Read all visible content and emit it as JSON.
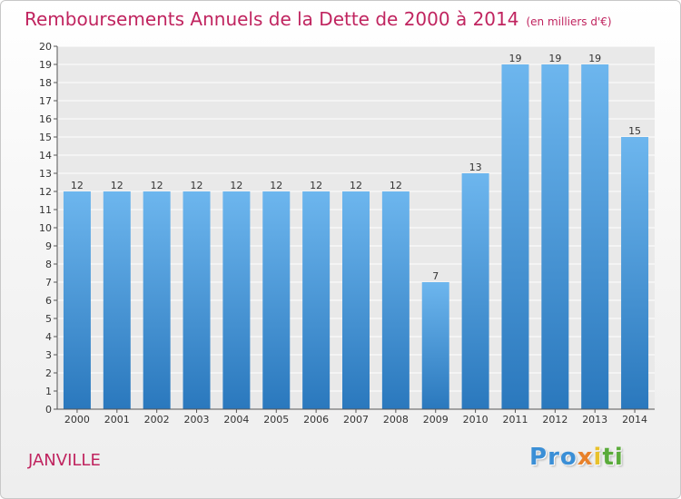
{
  "chart_data": {
    "type": "bar",
    "title": "Remboursements Annuels de la Dette de 2000 à 2014",
    "subtitle": "(en milliers d'€)",
    "categories": [
      "2000",
      "2001",
      "2002",
      "2003",
      "2004",
      "2005",
      "2006",
      "2007",
      "2008",
      "2009",
      "2010",
      "2011",
      "2012",
      "2013",
      "2014"
    ],
    "values": [
      12,
      12,
      12,
      12,
      12,
      12,
      12,
      12,
      12,
      7,
      13,
      19,
      19,
      19,
      15
    ],
    "ylim": [
      0,
      20
    ],
    "yticks": [
      0,
      1,
      2,
      3,
      4,
      5,
      6,
      7,
      8,
      9,
      10,
      11,
      12,
      13,
      14,
      15,
      16,
      17,
      18,
      19,
      20
    ],
    "xlabel": "",
    "ylabel": "",
    "grid": true
  },
  "footer": {
    "city": "JANVILLE",
    "logo": [
      "P",
      "r",
      "o",
      "x",
      "i",
      "t",
      "i"
    ]
  },
  "colors": {
    "title": "#c0245f",
    "bar_top": "#6db6ee",
    "bar_bottom": "#2a78bd",
    "logo": [
      "#3b8fd6",
      "#3b8fd6",
      "#3b8fd6",
      "#e8812a",
      "#e8c12a",
      "#5aab3a",
      "#5aab3a"
    ]
  }
}
